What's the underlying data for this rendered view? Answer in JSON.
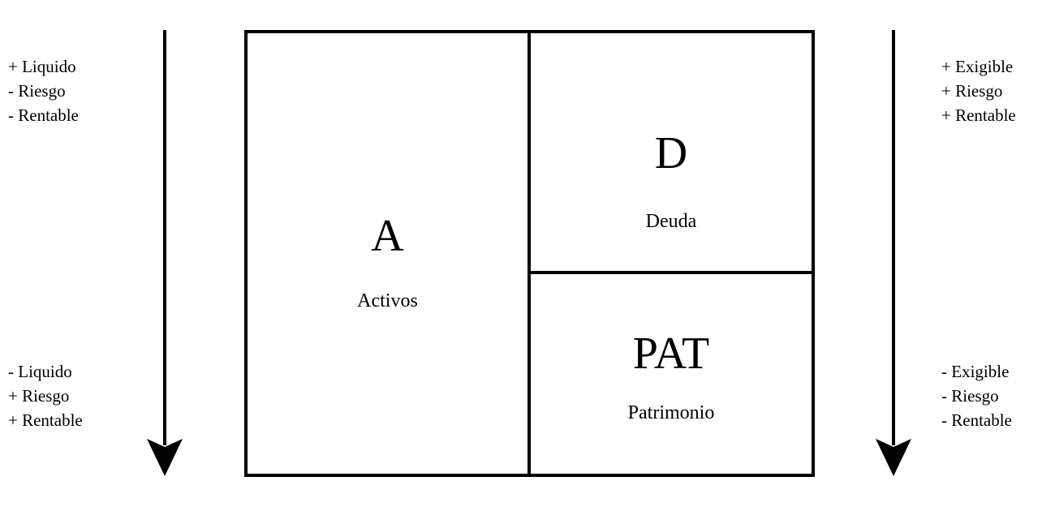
{
  "left_notes": {
    "top": [
      "+ Liquido",
      "- Riesgo",
      "- Rentable"
    ],
    "bottom": [
      "- Liquido",
      "+ Riesgo",
      "+ Rentable"
    ]
  },
  "right_notes": {
    "top": [
      "+ Exigible",
      "+ Riesgo",
      "+ Rentable"
    ],
    "bottom": [
      "- Exigible",
      "- Riesgo",
      "- Rentable"
    ]
  },
  "balance": {
    "assets": {
      "symbol": "A",
      "label": "Activos"
    },
    "debt": {
      "symbol": "D",
      "label": "Deuda"
    },
    "equity": {
      "symbol": "PAT",
      "label": "Patrimonio"
    }
  },
  "arrow_icon": "down-arrow-icon"
}
